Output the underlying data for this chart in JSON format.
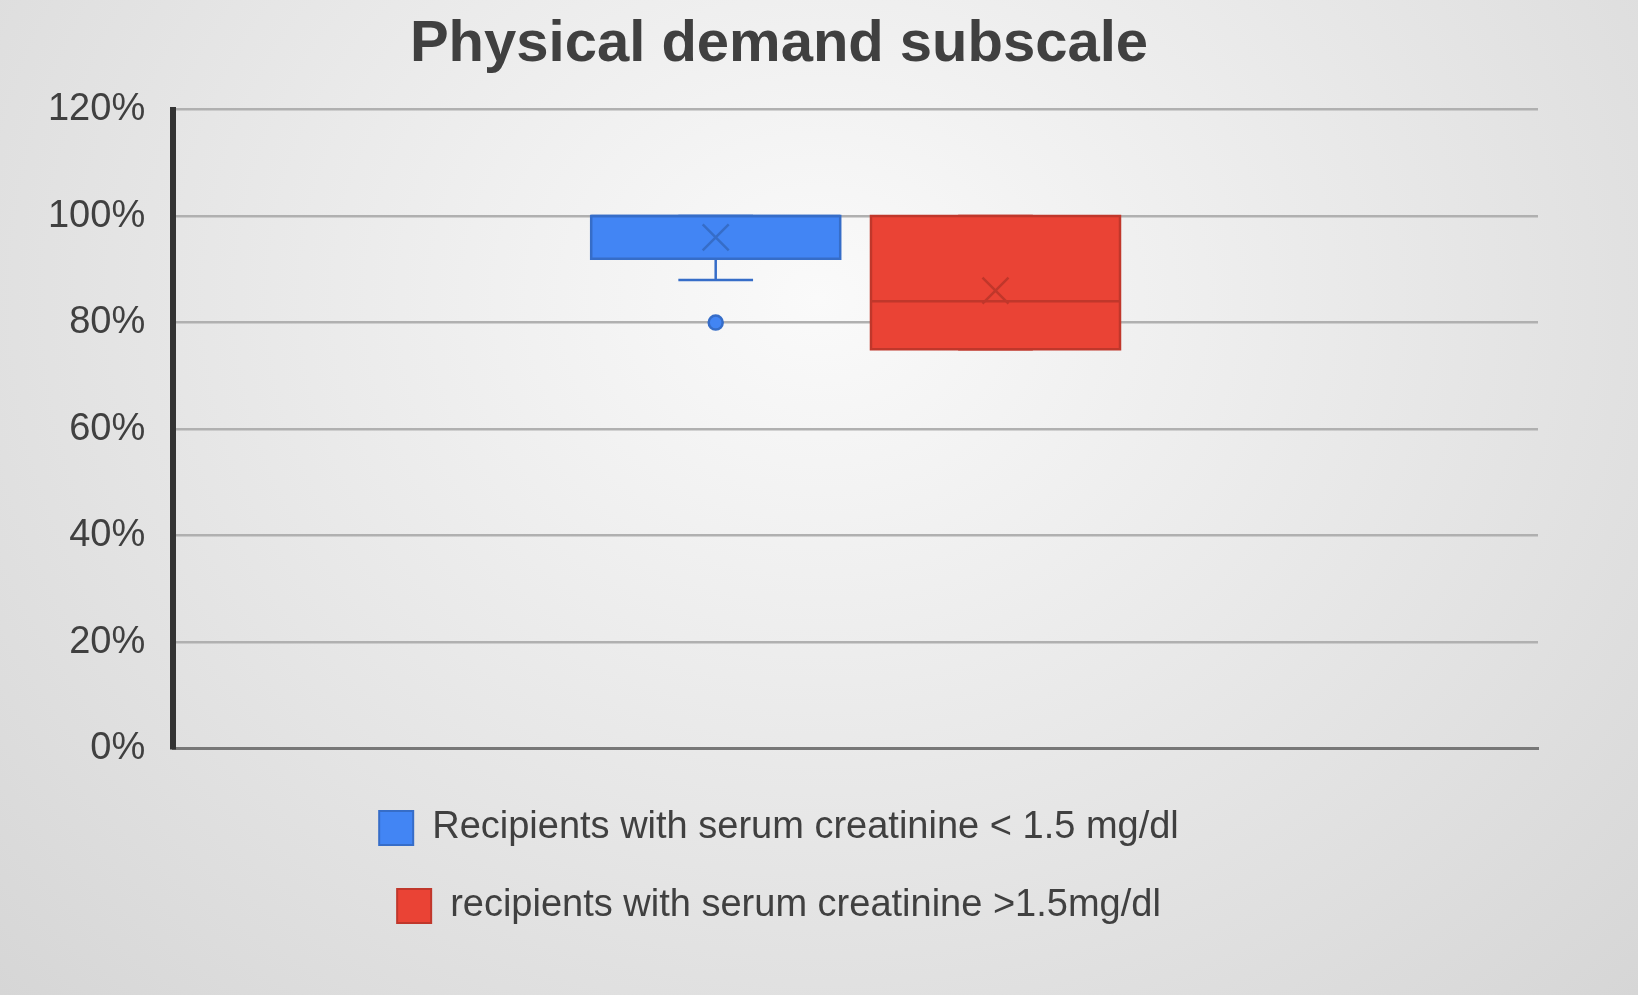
{
  "chart_data": {
    "type": "box",
    "title": "Physical demand subscale",
    "categories": [
      null
    ],
    "series": [
      {
        "name": "Recipients with serum creatinine < 1.5 mg/dl",
        "color": "#4285f4",
        "boxes": [
          {
            "low": 88,
            "q1": 92,
            "median": 100,
            "q3": 100,
            "high": 100,
            "mean": 96,
            "outliers": [
              80
            ]
          }
        ]
      },
      {
        "name": "recipients with serum creatinine >1.5mg/dl",
        "color": "#ea4335",
        "boxes": [
          {
            "low": 75,
            "q1": 75,
            "median": 84,
            "q3": 100,
            "high": 100,
            "mean": 86
          }
        ]
      }
    ],
    "ylim": [
      0,
      120
    ],
    "yticks": [
      {
        "value": 0,
        "label": "0%"
      },
      {
        "value": 20,
        "label": "20%"
      },
      {
        "value": 40,
        "label": "40%"
      },
      {
        "value": 60,
        "label": "60%"
      },
      {
        "value": 80,
        "label": "80%"
      },
      {
        "value": 100,
        "label": "100%"
      },
      {
        "value": 120,
        "label": "120%"
      }
    ],
    "grid": "y",
    "legend": "bottom"
  }
}
